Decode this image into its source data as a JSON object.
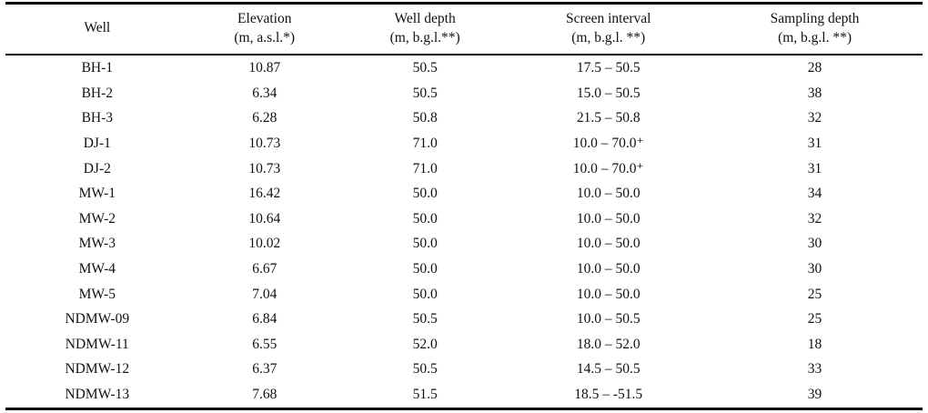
{
  "table": {
    "colors": {
      "rule": "#000000",
      "text": "#111111",
      "background": "#ffffff"
    },
    "columns": [
      {
        "key": "well",
        "label": "Well",
        "unit": ""
      },
      {
        "key": "elevation",
        "label": "Elevation",
        "unit": "(m, a.s.l.*)"
      },
      {
        "key": "well_depth",
        "label": "Well depth",
        "unit": "(m, b.g.l.**)"
      },
      {
        "key": "screen_interval",
        "label": "Screen interval",
        "unit": "(m, b.g.l. **)"
      },
      {
        "key": "sampling_depth",
        "label": "Sampling depth",
        "unit": "(m, b.g.l. **)"
      }
    ],
    "rows": [
      [
        "BH-1",
        "10.87",
        "50.5",
        "17.5 – 50.5",
        "28"
      ],
      [
        "BH-2",
        "6.34",
        "50.5",
        "15.0 – 50.5",
        "38"
      ],
      [
        "BH-3",
        "6.28",
        "50.8",
        "21.5 – 50.8",
        "32"
      ],
      [
        "DJ-1",
        "10.73",
        "71.0",
        "10.0 – 70.0⁺",
        "31"
      ],
      [
        "DJ-2",
        "10.73",
        "71.0",
        "10.0 – 70.0⁺",
        "31"
      ],
      [
        "MW-1",
        "16.42",
        "50.0",
        "10.0 – 50.0",
        "34"
      ],
      [
        "MW-2",
        "10.64",
        "50.0",
        "10.0 – 50.0",
        "32"
      ],
      [
        "MW-3",
        "10.02",
        "50.0",
        "10.0 – 50.0",
        "30"
      ],
      [
        "MW-4",
        "6.67",
        "50.0",
        "10.0 – 50.0",
        "30"
      ],
      [
        "MW-5",
        "7.04",
        "50.0",
        "10.0 – 50.0",
        "25"
      ],
      [
        "NDMW-09",
        "6.84",
        "50.5",
        "10.0 – 50.5",
        "25"
      ],
      [
        "NDMW-11",
        "6.55",
        "52.0",
        "18.0 – 52.0",
        "18"
      ],
      [
        "NDMW-12",
        "6.37",
        "50.5",
        "14.5 – 50.5",
        "33"
      ],
      [
        "NDMW-13",
        "7.68",
        "51.5",
        "18.5 – -51.5",
        "39"
      ]
    ]
  }
}
